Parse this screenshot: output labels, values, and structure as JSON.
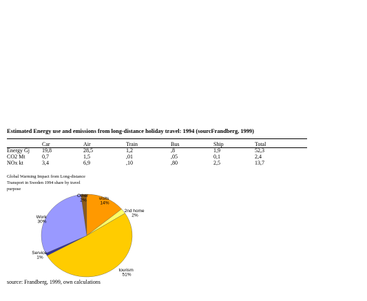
{
  "table": {
    "title": "Estimated Energy use and emissions from long-distance holiday travel: 1994 (sourcFrandberg, 1999)",
    "headers": [
      "",
      "Car",
      "Air",
      "Train",
      "Bus",
      "Ship",
      "Total"
    ],
    "rows": [
      {
        "label": "Energy Gj",
        "values": [
          "19,8",
          "28,5",
          "1,2",
          ",8",
          "1,9",
          "52,3"
        ]
      },
      {
        "label": "CO2 Mt",
        "values": [
          "0,7",
          "1,5",
          ",01",
          ",05",
          "0,1",
          "2,4"
        ]
      },
      {
        "label": "NOx kt",
        "values": [
          "3,4",
          "6,9",
          ",10",
          ",80",
          "2,5",
          "13,7"
        ]
      }
    ]
  },
  "chart": {
    "title_lines": [
      "Global Warming Impact from Long-distance",
      "Transport in Sweden 1994 share by travel",
      "purpose"
    ],
    "slices": [
      {
        "name": "Other",
        "pct": "2%",
        "value": 2,
        "color": "#8B5A1A"
      },
      {
        "name": "visits",
        "pct": "14%",
        "value": 14,
        "color": "#FF9900"
      },
      {
        "name": "2nd home",
        "pct": "2%",
        "value": 2,
        "color": "#FFFF66"
      },
      {
        "name": "tourism",
        "pct": "51%",
        "value": 51,
        "color": "#FFCC00"
      },
      {
        "name": "Service",
        "pct": "1%",
        "value": 1,
        "color": "#333399"
      },
      {
        "name": "Work",
        "pct": "30%",
        "value": 30,
        "color": "#9999FF"
      }
    ]
  },
  "source": "source: Frandberg, 1999, own calculations"
}
